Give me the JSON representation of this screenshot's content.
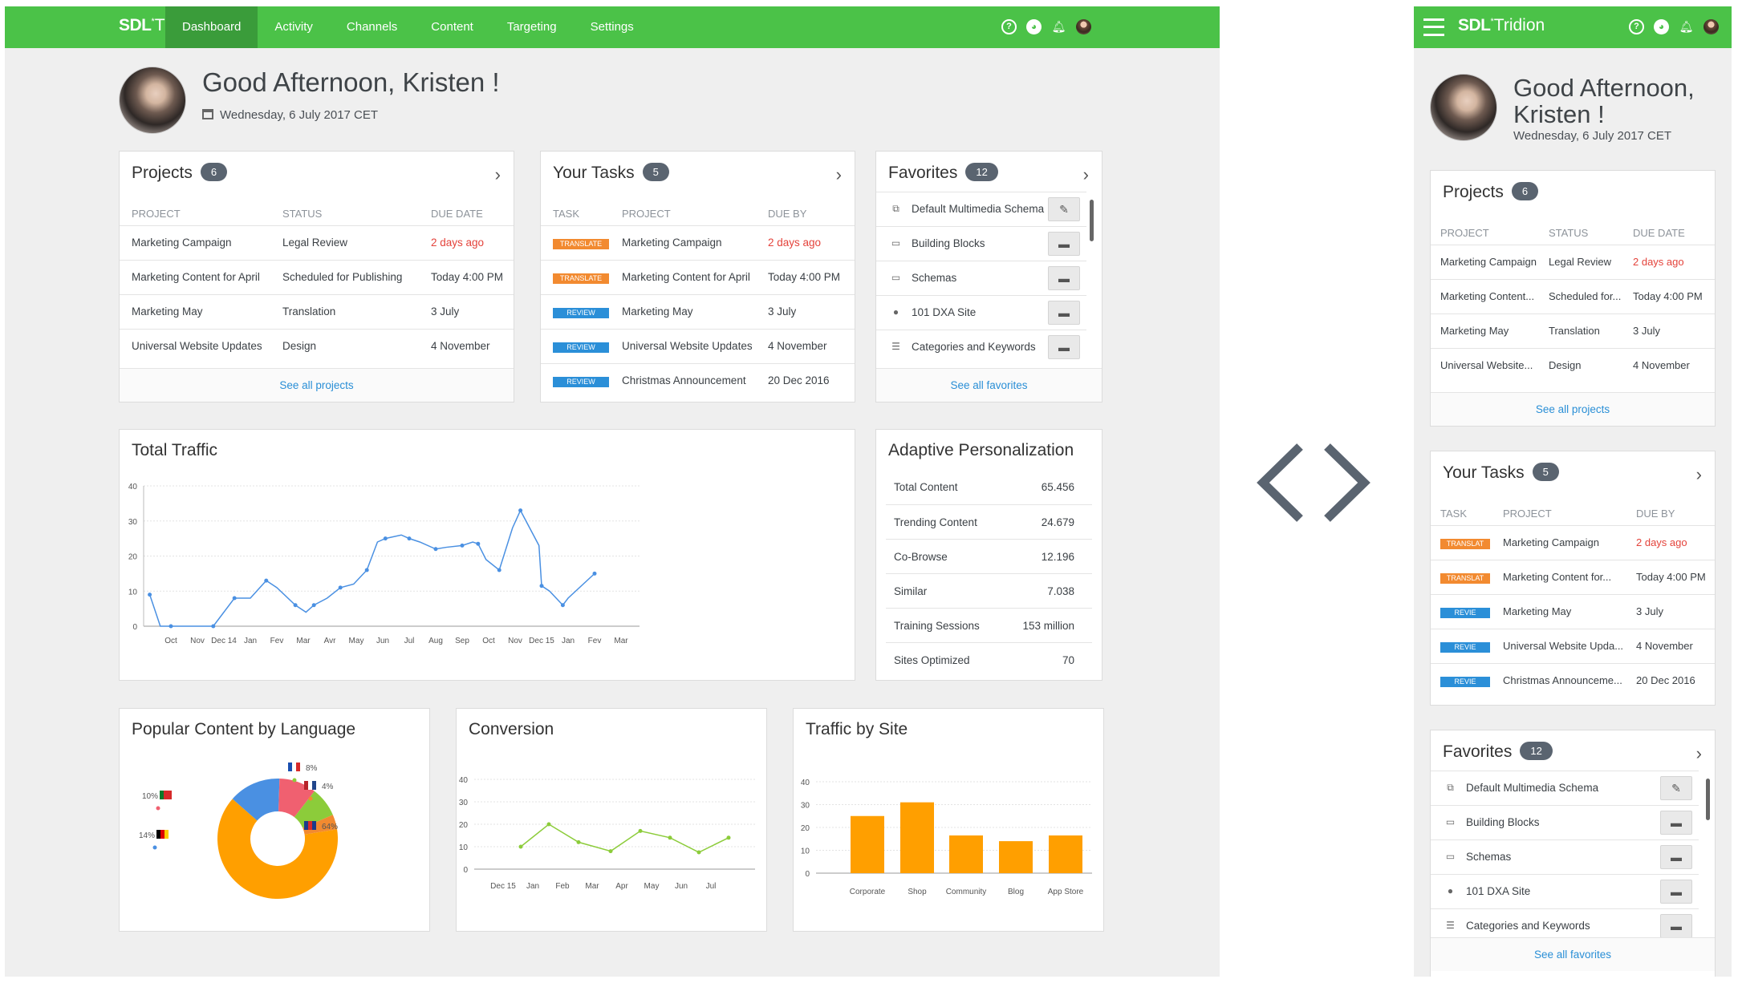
{
  "app": {
    "brand": "SDL",
    "brand_product": "Tridion",
    "colors": {
      "accent": "#4bc248",
      "accent_dark": "#3a9c3a",
      "link": "#2a8fd6",
      "overdue": "#e4433b",
      "tag_translate": "#f28a30",
      "tag_review": "#2b8fd8",
      "bar": "#ff9f00",
      "line": "#4a90e2",
      "line2": "#8ccc3a"
    }
  },
  "nav": [
    "Dashboard",
    "Activity",
    "Channels",
    "Content",
    "Targeting",
    "Settings"
  ],
  "nav_active": "Dashboard",
  "header_icons": [
    "help-icon",
    "globe-icon",
    "bell-icon",
    "user-avatar"
  ],
  "greeting": {
    "title": "Good Afternoon, Kristen !",
    "title_line1": "Good Afternoon,",
    "title_line2": "Kristen !",
    "date": "Wednesday, 6 July 2017 CET"
  },
  "projects": {
    "title": "Projects",
    "count": "6",
    "headers": [
      "PROJECT",
      "STATUS",
      "DUE DATE"
    ],
    "rows": [
      {
        "project": "Marketing Campaign",
        "status": "Legal Review",
        "due": "2 days ago",
        "overdue": true
      },
      {
        "project": "Marketing Content for April",
        "status": "Scheduled for Publishing",
        "due": "Today 4:00 PM",
        "overdue": false
      },
      {
        "project": "Marketing May",
        "status": "Translation",
        "due": "3 July",
        "overdue": false
      },
      {
        "project": "Universal Website Updates",
        "status": "Design",
        "due": "4 November",
        "overdue": false
      }
    ],
    "mobile_rows": [
      {
        "project": "Marketing Campaign",
        "status": "Legal Review",
        "due": "2 days ago"
      },
      {
        "project": "Marketing Content...",
        "status": "Scheduled for...",
        "due": "Today 4:00 PM"
      },
      {
        "project": "Marketing May",
        "status": "Translation",
        "due": "3 July"
      },
      {
        "project": "Universal Website...",
        "status": "Design",
        "due": "4 November"
      }
    ],
    "footer": "See all projects"
  },
  "tasks": {
    "title": "Your Tasks",
    "count": "5",
    "headers": [
      "TASK",
      "PROJECT",
      "DUE BY"
    ],
    "rows": [
      {
        "tag": "TRANSLATE",
        "tag_short": "TRANSLAT",
        "kind": "translate",
        "project": "Marketing Campaign",
        "project_short": "Marketing Campaign",
        "due": "2 days ago",
        "overdue": true
      },
      {
        "tag": "TRANSLATE",
        "tag_short": "TRANSLAT",
        "kind": "translate",
        "project": "Marketing Content for April",
        "project_short": "Marketing Content for...",
        "due": "Today 4:00 PM",
        "overdue": false
      },
      {
        "tag": "REVIEW",
        "tag_short": "REVIE",
        "kind": "review",
        "project": "Marketing May",
        "project_short": "Marketing May",
        "due": "3 July",
        "overdue": false
      },
      {
        "tag": "REVIEW",
        "tag_short": "REVIE",
        "kind": "review",
        "project": "Universal Website Updates",
        "project_short": "Universal Website Upda...",
        "due": "4 November",
        "overdue": false
      },
      {
        "tag": "REVIEW",
        "tag_short": "REVIE",
        "kind": "review",
        "project": "Christmas Announcement",
        "project_short": "Christmas Announceme...",
        "due": "20 Dec 2016",
        "overdue": false
      }
    ]
  },
  "favorites": {
    "title": "Favorites",
    "count": "12",
    "footer": "See all favorites",
    "items": [
      {
        "label": "Default Multimedia Schema",
        "icon": "schema-icon",
        "action": "edit-icon"
      },
      {
        "label": "Building Blocks",
        "icon": "folder-icon",
        "action": "open-folder-icon"
      },
      {
        "label": "Schemas",
        "icon": "folder-icon",
        "action": "open-folder-icon"
      },
      {
        "label": "101 DXA Site",
        "icon": "globe-icon",
        "action": "open-folder-icon"
      },
      {
        "label": "Categories and Keywords",
        "icon": "categories-icon",
        "action": "open-folder-icon"
      }
    ]
  },
  "adaptive": {
    "title": "Adaptive Personalization",
    "rows": [
      {
        "label": "Total Content",
        "value": "65.456"
      },
      {
        "label": "Trending Content",
        "value": "24.679"
      },
      {
        "label": "Co-Browse",
        "value": "12.196"
      },
      {
        "label": "Similar",
        "value": "7.038"
      },
      {
        "label": "Training Sessions",
        "value": "153 million"
      },
      {
        "label": "Sites Optimized",
        "value": "70"
      }
    ]
  },
  "traffic": {
    "title": "Total Traffic"
  },
  "popular": {
    "title": "Popular Content by Language"
  },
  "conversion": {
    "title": "Conversion"
  },
  "sitetraffic": {
    "title": "Traffic by Site"
  },
  "chart_data": [
    {
      "id": "total-traffic",
      "type": "line",
      "title": "Total Traffic",
      "yticks": [
        0,
        10,
        20,
        30,
        40
      ],
      "ylim": [
        0,
        40
      ],
      "categories": [
        "Oct",
        "Nov",
        "Dec 14",
        "Jan",
        "Fev",
        "Mar",
        "Avr",
        "May",
        "Jun",
        "Jul",
        "Aug",
        "Sep",
        "Oct",
        "Nov",
        "Dec 15",
        "Jan",
        "Fev",
        "Mar"
      ],
      "x": [
        -0.8,
        -0.4,
        0,
        1,
        1.6,
        2,
        2.4,
        3,
        3.6,
        4,
        4.7,
        5.1,
        5.4,
        5.9,
        6.4,
        6.9,
        7.4,
        7.8,
        8.1,
        8.7,
        9,
        9.4,
        10,
        10.4,
        11,
        11.4,
        11.6,
        11.9,
        12.4,
        12.9,
        13.2,
        13.9,
        14,
        14.3,
        14.8,
        15,
        16
      ],
      "values": [
        9,
        0,
        0,
        0,
        0,
        4,
        8,
        8,
        13,
        11,
        6,
        4,
        6,
        8,
        11,
        12,
        16,
        24,
        25,
        26,
        25,
        24,
        22,
        22.5,
        23,
        24,
        23.5,
        19,
        16,
        28,
        33,
        23,
        11.5,
        10,
        6,
        8,
        15
      ]
    },
    {
      "id": "popular-content",
      "type": "pie",
      "title": "Popular Content by Language",
      "series": [
        {
          "name": "English",
          "value": 64,
          "color": "#ff9f00",
          "label": "64%"
        },
        {
          "name": "German",
          "value": 14,
          "color": "#4a90e2",
          "label": "14%"
        },
        {
          "name": "Portuguese",
          "value": 10,
          "color": "#f06070",
          "label": "10%"
        },
        {
          "name": "French",
          "value": 8,
          "color": "#8ccc3a",
          "label": "8%"
        },
        {
          "name": "Dutch",
          "value": 4,
          "color": "#f28a30",
          "label": "4%"
        }
      ]
    },
    {
      "id": "conversion",
      "type": "line",
      "title": "Conversion",
      "yticks": [
        0,
        10,
        20,
        30,
        40
      ],
      "ylim": [
        0,
        40
      ],
      "categories": [
        "Dec 15",
        "Jan",
        "Feb",
        "Mar",
        "Apr",
        "May",
        "Jun",
        "Jul"
      ],
      "values": [
        10,
        20,
        12,
        8,
        17,
        14,
        7.5,
        14
      ]
    },
    {
      "id": "traffic-by-site",
      "type": "bar",
      "title": "Traffic by Site",
      "yticks": [
        0,
        10,
        20,
        30,
        40
      ],
      "ylim": [
        0,
        40
      ],
      "categories": [
        "Corporate",
        "Shop",
        "Community",
        "Blog",
        "App Store"
      ],
      "values": [
        25,
        31,
        16.5,
        14,
        16.5
      ]
    }
  ]
}
